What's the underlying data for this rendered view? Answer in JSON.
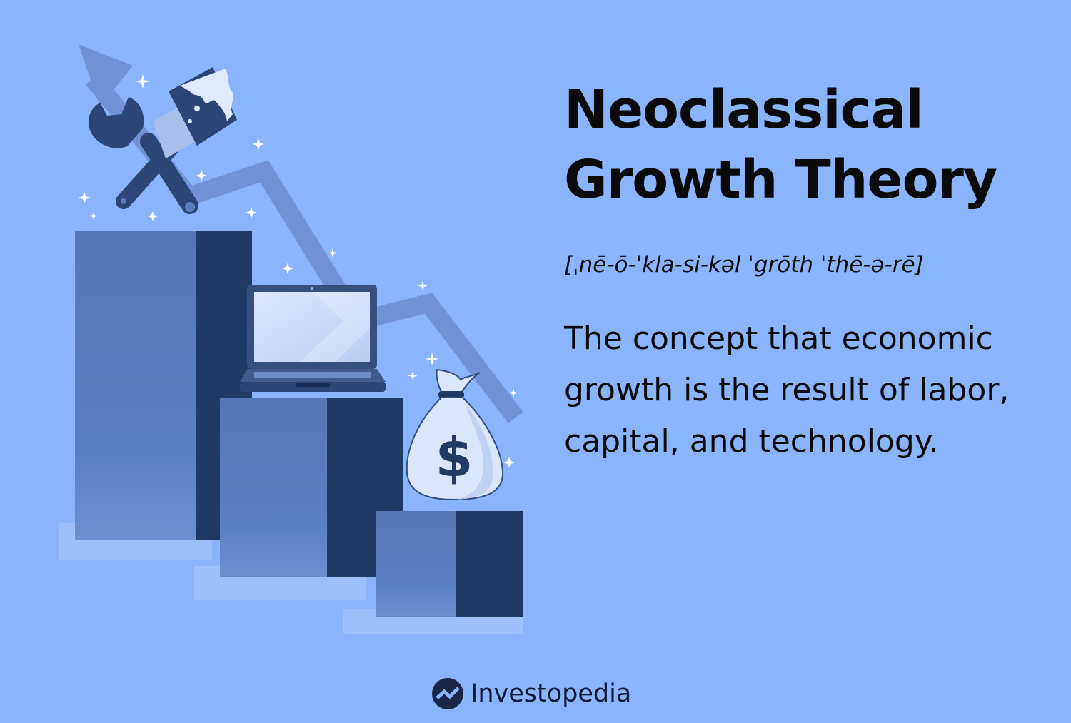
{
  "title_line1": "Neoclassical",
  "title_line2": "Growth Theory",
  "pronunciation": "[ˌnē-ō-ˈkla-si-kəl ˈgrōth ˈthē-ə-rē]",
  "definition": "The concept that economic growth is the result of labor, capital, and technology.",
  "brand": {
    "name": "Investopedia",
    "icon": "investopedia-logo-icon"
  },
  "illustration": {
    "icons": [
      "arrow-icon",
      "wrench-icon",
      "paintbrush-icon",
      "laptop-icon",
      "money-bag-icon",
      "dollar-sign-icon",
      "sparkle-icon"
    ],
    "money_bag_symbol": "$"
  },
  "colors": {
    "background": "#8ab4fb",
    "bar_light": "#5578b8",
    "bar_dark": "#1f3a64",
    "arrow": "#6f93d6",
    "text": "#0a0a0a"
  }
}
